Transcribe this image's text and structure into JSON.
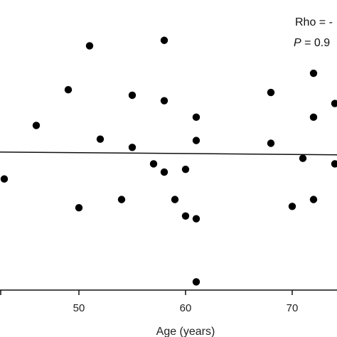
{
  "chart_data": {
    "type": "scatter",
    "xlabel": "Age (years)",
    "ylabel": "",
    "xlim": [
      42.6,
      74.2
    ],
    "ylim": [
      0,
      10
    ],
    "x_ticks": [
      50,
      60,
      70
    ],
    "grid": false,
    "annotations": [
      {
        "label": "Rho = -",
        "style": "normal"
      },
      {
        "label": "P",
        "suffix": " = 0.9",
        "style": "italic-label"
      }
    ],
    "points": [
      [
        43,
        4.05
      ],
      [
        46,
        6.0
      ],
      [
        49,
        7.3
      ],
      [
        50,
        3.0
      ],
      [
        51,
        8.9
      ],
      [
        52,
        5.5
      ],
      [
        54,
        3.3
      ],
      [
        55,
        5.2
      ],
      [
        55,
        7.1
      ],
      [
        57,
        4.6
      ],
      [
        58,
        9.1
      ],
      [
        58,
        6.9
      ],
      [
        58,
        4.3
      ],
      [
        59,
        3.3
      ],
      [
        60,
        4.4
      ],
      [
        60,
        2.7
      ],
      [
        61,
        2.6
      ],
      [
        61,
        6.3
      ],
      [
        61,
        5.45
      ],
      [
        61,
        0.3
      ],
      [
        68,
        7.2
      ],
      [
        68,
        5.35
      ],
      [
        70,
        3.05
      ],
      [
        71,
        4.8
      ],
      [
        72,
        7.9
      ],
      [
        72,
        6.3
      ],
      [
        72,
        3.3
      ],
      [
        74,
        6.8
      ],
      [
        74,
        4.6
      ]
    ],
    "trend_line": {
      "x": [
        42.6,
        74.2
      ],
      "y": [
        5.03,
        4.93
      ]
    }
  }
}
